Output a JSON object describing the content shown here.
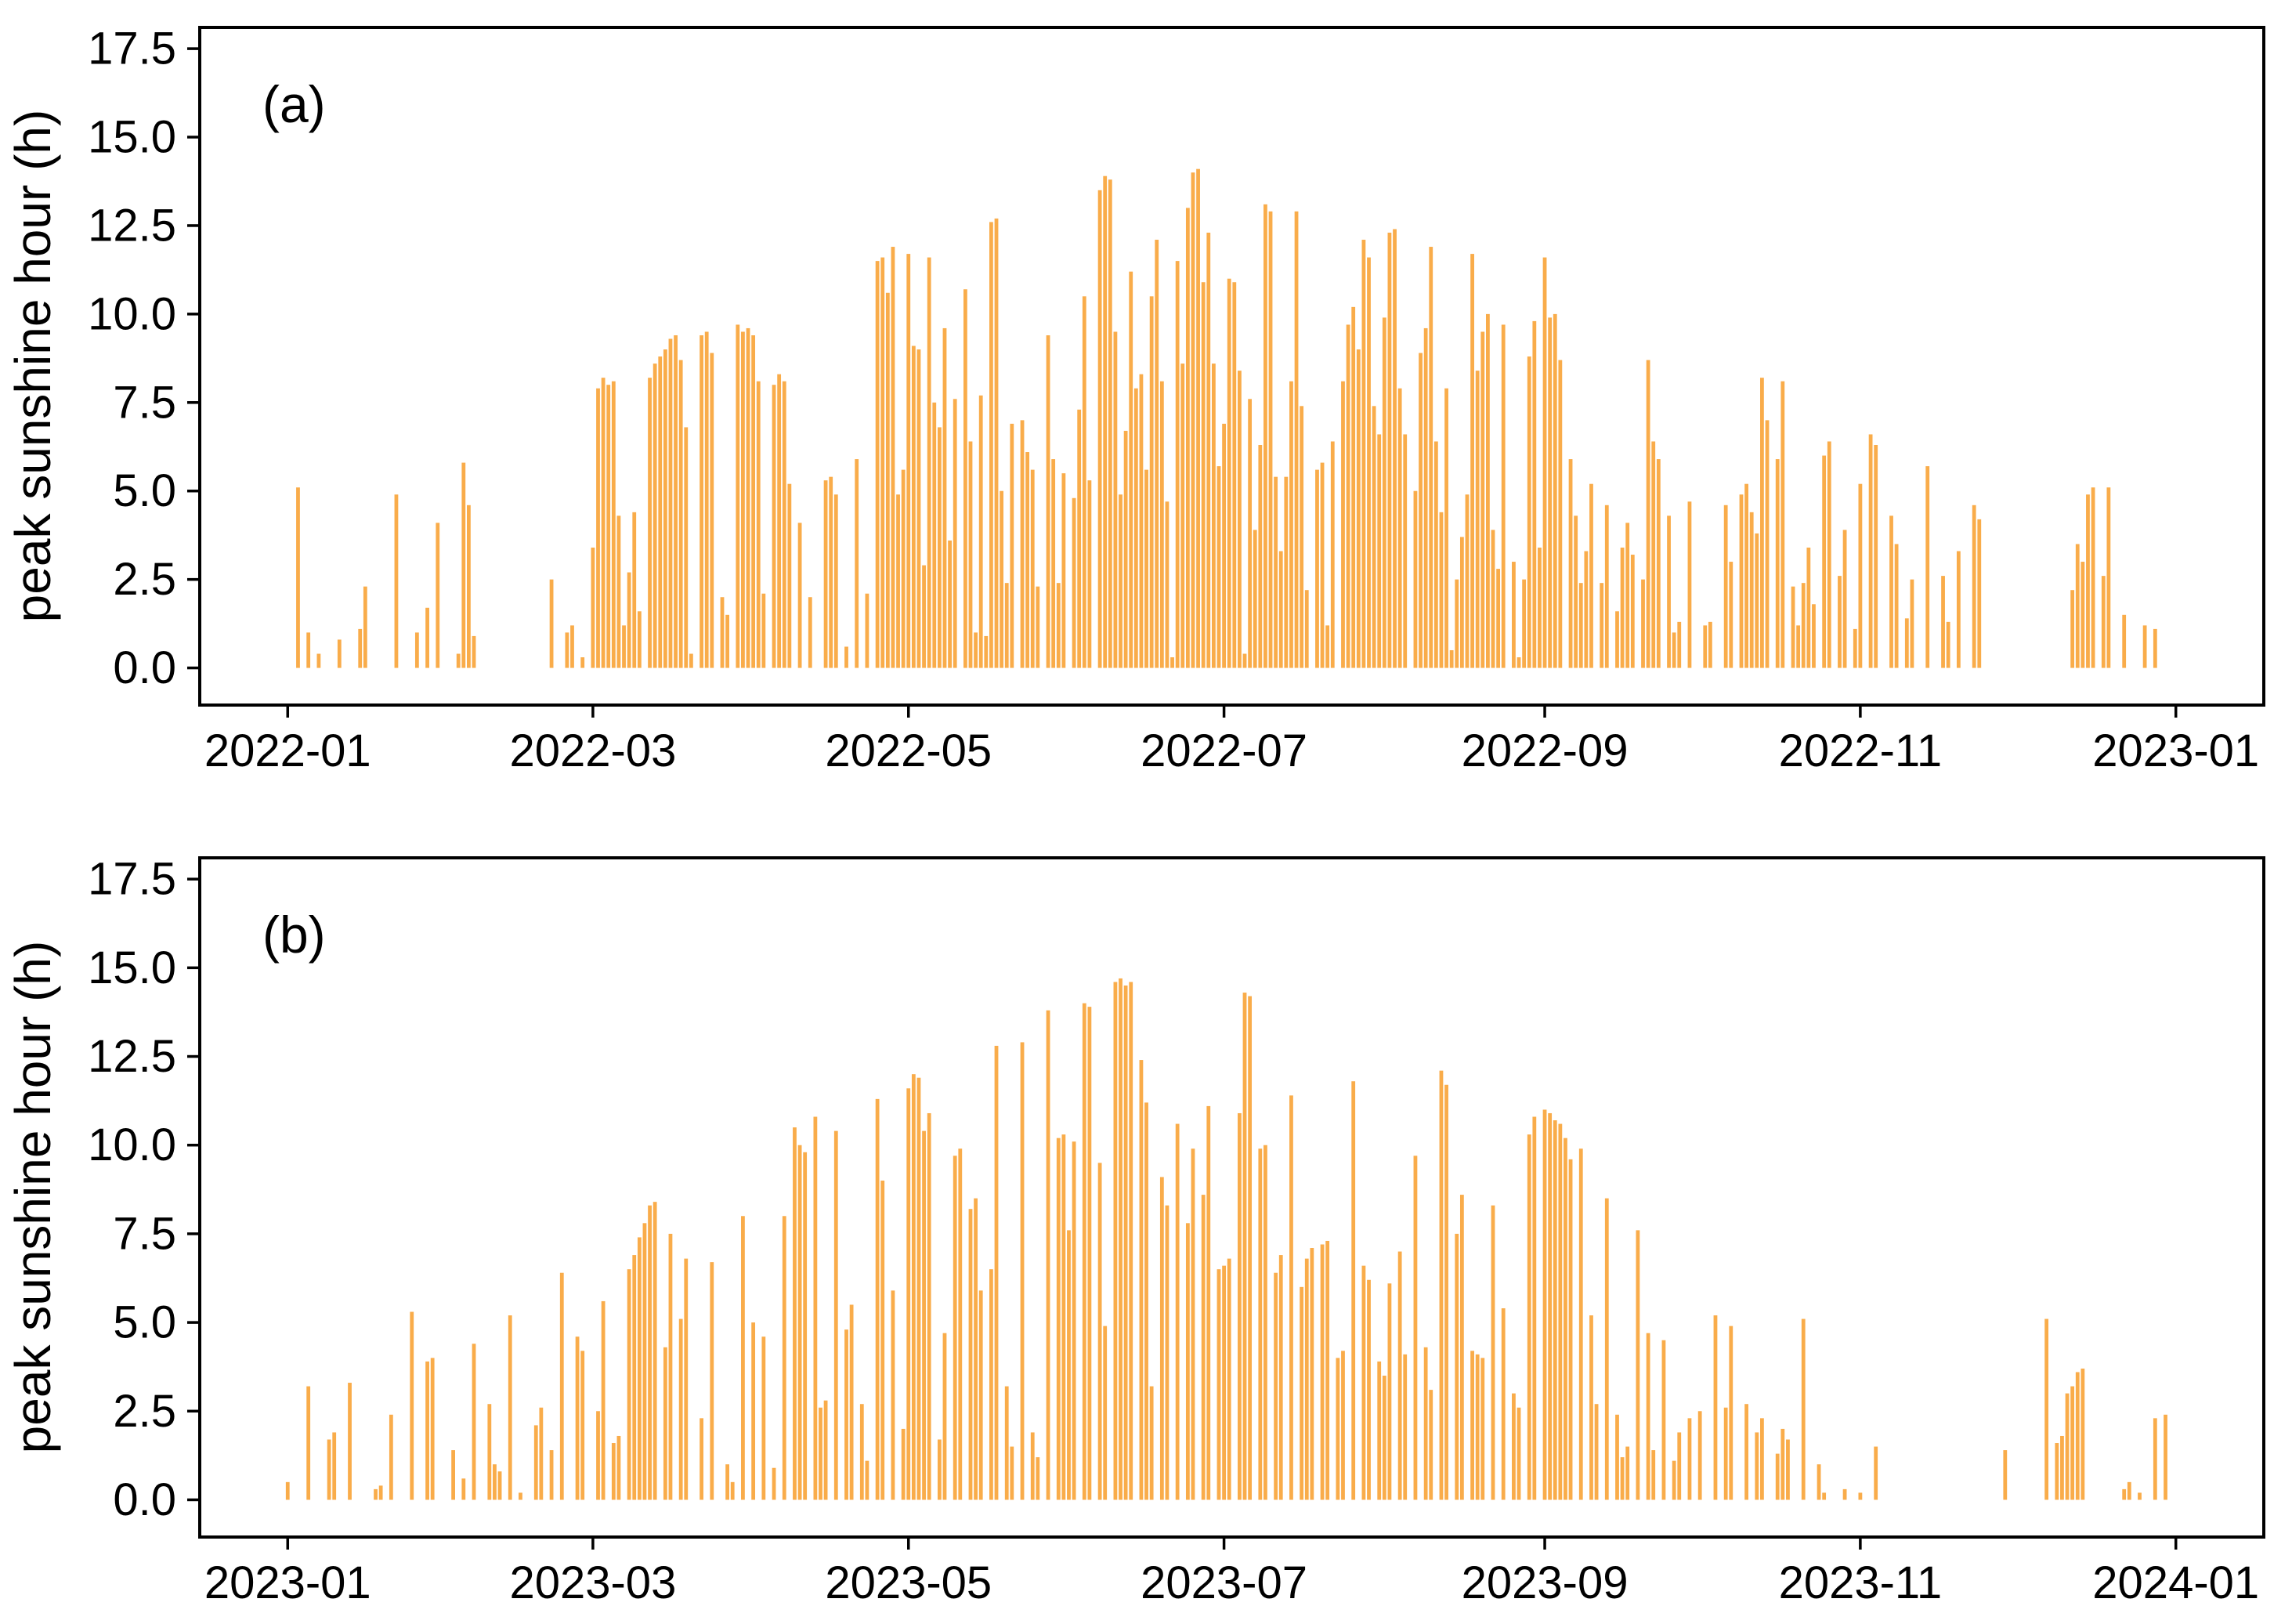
{
  "figure": {
    "background": "#ffffff",
    "axis_color": "#000000",
    "bar_color": "#F9AC4A"
  },
  "chart_data": [
    {
      "type": "bar",
      "panel_label": "(a)",
      "ylabel": "peak sunshine hour (h)",
      "xlabel": "",
      "title": "",
      "legend": null,
      "grid": false,
      "ylim": [
        -1.05,
        18.1
      ],
      "xtick_labels": [
        "2022-01",
        "2022-03",
        "2022-05",
        "2022-07",
        "2022-09",
        "2022-11",
        "2023-01"
      ],
      "ytick_labels": [
        "0.0",
        "2.5",
        "5.0",
        "7.5",
        "10.0",
        "12.5",
        "15.0",
        "17.5"
      ],
      "daily_values_by_month": {
        "2022-01": [
          0,
          0,
          5.1,
          0,
          1.0,
          0,
          0.4,
          0,
          0,
          0,
          0.8,
          0,
          0,
          0,
          1.1,
          2.3,
          0,
          0,
          0,
          0,
          0,
          4.9,
          0,
          0,
          0,
          1.0,
          0,
          1.7,
          0,
          4.1,
          0
        ],
        "2022-02": [
          0,
          0,
          0.4,
          5.8,
          4.6,
          0.9,
          0,
          0,
          0,
          0,
          0,
          0,
          0,
          0,
          0,
          0,
          0,
          0,
          0,
          0,
          2.5,
          0,
          0,
          1.0,
          1.2,
          0,
          0.3,
          0
        ],
        "2022-03": [
          3.4,
          7.9,
          8.2,
          8.0,
          8.1,
          4.3,
          1.2,
          2.7,
          4.4,
          1.6,
          0,
          8.2,
          8.6,
          8.8,
          9.0,
          9.3,
          9.4,
          8.7,
          6.8,
          0.4,
          0,
          9.4,
          9.5,
          8.9,
          0,
          2.0,
          1.5,
          0,
          9.7,
          9.5,
          9.6
        ],
        "2022-04": [
          9.4,
          8.1,
          2.1,
          0,
          8.0,
          8.3,
          8.1,
          5.2,
          0,
          4.1,
          0,
          2.0,
          0,
          0,
          5.3,
          5.4,
          4.9,
          0,
          0.6,
          0,
          5.9,
          0,
          2.1,
          0,
          11.5,
          11.6,
          10.6,
          11.9,
          4.9,
          5.6
        ],
        "2022-05": [
          11.7,
          9.1,
          9.0,
          2.9,
          11.6,
          7.5,
          6.8,
          9.6,
          3.6,
          7.6,
          0,
          10.7,
          6.4,
          1.0,
          7.7,
          0.9,
          12.6,
          12.7,
          5.0,
          2.4,
          6.9,
          0,
          7.0,
          6.1,
          5.6,
          2.3,
          0,
          9.4,
          5.9,
          2.4,
          5.5
        ],
        "2022-06": [
          0,
          4.8,
          7.3,
          10.5,
          5.3,
          0,
          13.5,
          13.9,
          13.8,
          9.5,
          4.9,
          6.7,
          11.2,
          7.9,
          8.3,
          5.6,
          10.5,
          12.1,
          8.1,
          4.7,
          0.3,
          11.5,
          8.6,
          13.0,
          14.0,
          14.1,
          10.9,
          12.3,
          8.6,
          5.7
        ],
        "2022-07": [
          6.9,
          11.0,
          10.9,
          8.4,
          0.4,
          7.6,
          3.9,
          6.3,
          13.1,
          12.9,
          5.4,
          3.3,
          5.4,
          8.1,
          12.9,
          7.4,
          2.2,
          0,
          5.6,
          5.8,
          1.2,
          6.4,
          0,
          8.1,
          9.7,
          10.2,
          9.0,
          12.1,
          11.6,
          7.4,
          6.6
        ],
        "2022-08": [
          9.9,
          12.3,
          12.4,
          7.9,
          6.6,
          0,
          5.0,
          8.9,
          9.6,
          11.9,
          6.4,
          4.4,
          7.9,
          0.5,
          2.5,
          3.7,
          4.9,
          11.7,
          8.4,
          9.5,
          10.0,
          3.9,
          2.8,
          9.7,
          0,
          3.0,
          0.3,
          2.5,
          8.8,
          9.8,
          3.4
        ],
        "2022-09": [
          11.6,
          9.9,
          10.0,
          8.7,
          0,
          5.9,
          4.3,
          2.4,
          3.3,
          5.2,
          0,
          2.4,
          4.6,
          0,
          1.6,
          3.4,
          4.1,
          3.2,
          0,
          2.5,
          8.7,
          6.4,
          5.9,
          0,
          4.3,
          1.0,
          1.3,
          0,
          4.7,
          0
        ],
        "2022-10": [
          0,
          1.2,
          1.3,
          0,
          0,
          4.6,
          3.0,
          0,
          4.9,
          5.2,
          4.4,
          3.8,
          8.2,
          7.0,
          0,
          5.9,
          8.1,
          0,
          2.3,
          1.2,
          2.4,
          3.4,
          1.8,
          0,
          6.0,
          6.4,
          0,
          2.6,
          3.9,
          0,
          1.1
        ],
        "2022-11": [
          5.2,
          0,
          6.6,
          6.3,
          0,
          0,
          4.3,
          3.5,
          0,
          1.4,
          2.5,
          0,
          0,
          5.7,
          0,
          0,
          2.6,
          1.3,
          0,
          3.3,
          0,
          0,
          4.6,
          4.2,
          0,
          0,
          0,
          0,
          0,
          0
        ],
        "2022-12": [
          0,
          0,
          0,
          0,
          0,
          0,
          0,
          0,
          0,
          0,
          0,
          2.2,
          3.5,
          3.0,
          4.9,
          5.1,
          0,
          2.6,
          5.1,
          0,
          0,
          1.5,
          0,
          0,
          0,
          1.2,
          0,
          1.1,
          0,
          0,
          0
        ]
      }
    },
    {
      "type": "bar",
      "panel_label": "(b)",
      "ylabel": "peak sunshine hour (h)",
      "xlabel": "",
      "title": "",
      "legend": null,
      "grid": false,
      "ylim": [
        -1.05,
        18.1
      ],
      "xtick_labels": [
        "2023-01",
        "2023-03",
        "2023-05",
        "2023-07",
        "2023-09",
        "2023-11",
        "2024-01"
      ],
      "ytick_labels": [
        "0.0",
        "2.5",
        "5.0",
        "7.5",
        "10.0",
        "12.5",
        "15.0",
        "17.5"
      ],
      "daily_values_by_month": {
        "2023-01": [
          0.5,
          0,
          0,
          0,
          3.2,
          0,
          0,
          0,
          1.7,
          1.9,
          0,
          0,
          3.3,
          0,
          0,
          0,
          0,
          0.3,
          0.4,
          0,
          2.4,
          0,
          0,
          0,
          5.3,
          0,
          0,
          3.9,
          4.0,
          0,
          0
        ],
        "2023-02": [
          0,
          1.4,
          0,
          0.6,
          0,
          4.4,
          0,
          0,
          2.7,
          1.0,
          0.8,
          0,
          5.2,
          0,
          0.2,
          0,
          0,
          2.1,
          2.6,
          0,
          1.4,
          0,
          6.4,
          0,
          0,
          4.6,
          4.2,
          0
        ],
        "2023-03": [
          0,
          2.5,
          5.6,
          0,
          1.6,
          1.8,
          0,
          6.5,
          6.9,
          7.4,
          7.8,
          8.3,
          8.4,
          0,
          4.3,
          7.5,
          0,
          5.1,
          6.8,
          0,
          0,
          2.3,
          0,
          6.7,
          0,
          0,
          1.0,
          0.5,
          0,
          8.0,
          0
        ],
        "2023-04": [
          5.0,
          0,
          4.6,
          0,
          0.9,
          0,
          8.0,
          0,
          10.5,
          10.0,
          9.8,
          0,
          10.8,
          2.6,
          2.8,
          0,
          10.4,
          0,
          4.8,
          5.5,
          0,
          2.7,
          1.1,
          0,
          11.3,
          9.0,
          0,
          5.9,
          0,
          2.0
        ],
        "2023-05": [
          11.6,
          12.0,
          11.9,
          10.4,
          10.9,
          0,
          1.7,
          4.7,
          0,
          9.7,
          9.9,
          0,
          8.2,
          8.5,
          5.9,
          0,
          6.5,
          12.8,
          0,
          3.2,
          1.5,
          0,
          12.9,
          0,
          1.9,
          1.2,
          0,
          13.8,
          0,
          10.2,
          10.3
        ],
        "2023-06": [
          7.6,
          10.1,
          0,
          14.0,
          13.9,
          0,
          9.5,
          4.9,
          0,
          14.6,
          14.7,
          14.5,
          14.6,
          0,
          12.4,
          11.2,
          3.2,
          0,
          9.1,
          8.3,
          0,
          10.6,
          0,
          7.8,
          9.9,
          0,
          8.6,
          11.1,
          0,
          6.5
        ],
        "2023-07": [
          6.6,
          6.8,
          0,
          10.9,
          14.3,
          14.2,
          0,
          9.9,
          10.0,
          0,
          6.4,
          6.9,
          0,
          11.4,
          0,
          6.0,
          6.8,
          7.1,
          0,
          7.2,
          7.3,
          0,
          4.0,
          4.2,
          0,
          11.8,
          0,
          6.6,
          6.2,
          0,
          3.9
        ],
        "2023-08": [
          3.5,
          6.1,
          0,
          7.0,
          4.1,
          0,
          9.7,
          0,
          4.3,
          3.1,
          0,
          12.1,
          11.7,
          0,
          7.5,
          8.6,
          0,
          4.2,
          4.1,
          4.0,
          0,
          8.3,
          0,
          5.4,
          0,
          3.0,
          2.6,
          0,
          10.3,
          10.8,
          0
        ],
        "2023-09": [
          11.0,
          10.9,
          10.7,
          10.6,
          10.2,
          9.6,
          0,
          9.9,
          0,
          5.2,
          2.7,
          0,
          8.5,
          0,
          2.4,
          1.2,
          1.5,
          0,
          7.6,
          0,
          4.7,
          1.4,
          0,
          4.5,
          0,
          1.1,
          1.9,
          0,
          2.3,
          0
        ],
        "2023-10": [
          2.5,
          0,
          0,
          5.2,
          0,
          2.6,
          4.9,
          0,
          0,
          2.7,
          0,
          1.9,
          2.3,
          0,
          0,
          1.3,
          2.0,
          1.7,
          0,
          0,
          5.1,
          0,
          0,
          1.0,
          0.2,
          0,
          0,
          0,
          0.3,
          0,
          0
        ],
        "2023-11": [
          0.2,
          0,
          0,
          1.5,
          0,
          0,
          0,
          0,
          0,
          0,
          0,
          0,
          0,
          0,
          0,
          0,
          0,
          0,
          0,
          0,
          0,
          0,
          0,
          0,
          0,
          0,
          0,
          0,
          1.4,
          0
        ],
        "2023-12": [
          0,
          0,
          0,
          0,
          0,
          0,
          5.1,
          0,
          1.6,
          1.8,
          3.0,
          3.2,
          3.6,
          3.7,
          0,
          0,
          0,
          0,
          0,
          0,
          0,
          0.3,
          0.5,
          0,
          0.2,
          0,
          0,
          2.3,
          0,
          2.4,
          0
        ]
      }
    }
  ]
}
